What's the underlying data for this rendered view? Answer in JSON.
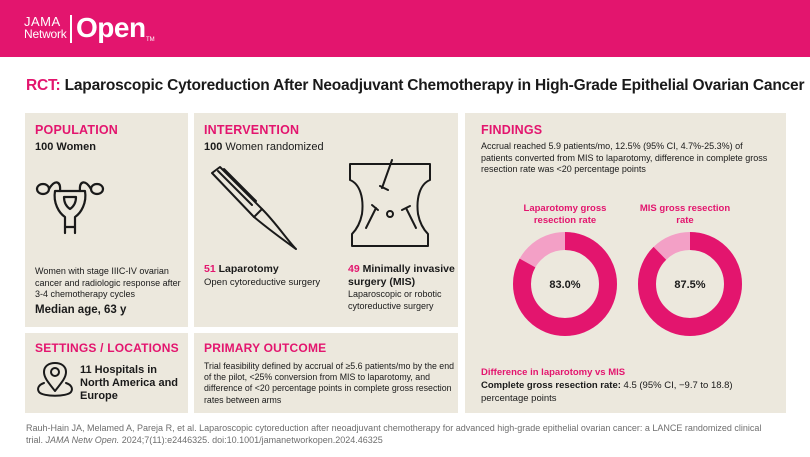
{
  "header": {
    "logo_line1": "JAMA",
    "logo_line2": "Network",
    "logo_open": "Open",
    "logo_tm": "TM",
    "brand_color": "#e3156e"
  },
  "title": {
    "prefix": "RCT:",
    "text": "Laparoscopic Cytoreduction After Neoadjuvant Chemotherapy in High-Grade Epithelial Ovarian Cancer"
  },
  "population": {
    "heading": "POPULATION",
    "count": "100 Women",
    "icon": "uterus-icon",
    "description": "Women with stage IIIC-IV ovarian cancer and radiologic response after 3-4 chemotherapy cycles",
    "median_age": "Median age, 63 y"
  },
  "intervention": {
    "heading": "INTERVENTION",
    "count_bold": "100",
    "count_rest": " Women randomized",
    "arm1": {
      "icon": "scalpel-icon",
      "number": "51",
      "name": "Laparotomy",
      "description": "Open cytoreductive surgery"
    },
    "arm2": {
      "icon": "abdomen-ports-icon",
      "number": "49",
      "name": "Minimally invasive surgery (MIS)",
      "description": "Laparoscopic or robotic cytoreductive surgery"
    }
  },
  "settings": {
    "heading": "SETTINGS / LOCATIONS",
    "icon": "location-pin-icon",
    "text": "11 Hospitals in North America and Europe"
  },
  "primary_outcome": {
    "heading": "PRIMARY OUTCOME",
    "text": "Trial feasibility defined by accrual of ≥5.6 patients/mo by the end of the pilot, <25% conversion from MIS to laparotomy, and difference of <20 percentage points in complete gross resection rates between arms"
  },
  "findings": {
    "heading": "FINDINGS",
    "text": "Accrual reached 5.9 patients/mo, 12.5% (95% CI, 4.7%-25.3%) of patients converted from MIS to laparotomy, difference in complete gross resection rate was <20 percentage points",
    "donut1": {
      "label": "Laparotomy gross resection rate",
      "value_label": "83.0%",
      "value": 83.0
    },
    "donut2": {
      "label": "MIS gross resection rate",
      "value_label": "87.5%",
      "value": 87.5
    },
    "difference_heading": "Difference in laparotomy vs MIS",
    "difference_bold": "Complete gross resection rate:",
    "difference_rest": " 4.5 (95% CI, −9.7 to 18.8) percentage points",
    "colors": {
      "fill": "#e3156e",
      "remainder": "#f3a0c6"
    }
  },
  "footer": {
    "citation_line1": "Rauh-Hain JA, Melamed A, Pareja R, et al. Laparoscopic cytoreduction after neoadjuvant chemotherapy for advanced high-grade epithelial ovarian cancer: a LANCE randomized clinical",
    "citation_line2_prefix": "trial. ",
    "journal": "JAMA Netw Open.",
    "citation_line2_rest": " 2024;7(11):e2446325. doi:10.1001/jamanetworkopen.2024.46325"
  }
}
